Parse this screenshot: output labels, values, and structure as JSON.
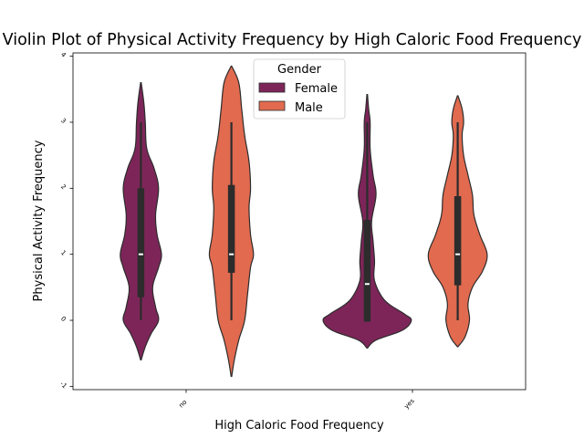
{
  "chart_data": {
    "type": "violin",
    "title": "Violin Plot of Physical Activity Frequency by High Caloric Food Frequency",
    "xlabel": "High Caloric Food Frequency",
    "ylabel": "Physical Activity Frequency",
    "categories": [
      "no",
      "yes"
    ],
    "yticks": [
      "-1",
      "0",
      "1",
      "2",
      "3",
      "4"
    ],
    "ylim": [
      -1.05,
      4.05
    ],
    "legend": {
      "title": "Gender",
      "placement": "top-center",
      "entries": [
        "Female",
        "Male"
      ]
    },
    "colors": {
      "Female": "#7d2559",
      "Male": "#e16a4f",
      "box": "#2c2c2c"
    },
    "series": [
      {
        "name": "Female",
        "violins": [
          {
            "category": "no",
            "median": 1.0,
            "q1": 0.35,
            "q3": 2.0,
            "whisker_low": 0.0,
            "whisker_high": 3.0,
            "profile": [
              [
                -0.6,
                0.2
              ],
              [
                -0.4,
                3
              ],
              [
                -0.2,
                7
              ],
              [
                0.0,
                12
              ],
              [
                0.2,
                10
              ],
              [
                0.5,
                8
              ],
              [
                0.8,
                12
              ],
              [
                1.0,
                14
              ],
              [
                1.3,
                11
              ],
              [
                1.6,
                10
              ],
              [
                2.0,
                12
              ],
              [
                2.3,
                9
              ],
              [
                2.6,
                4
              ],
              [
                3.0,
                3
              ],
              [
                3.3,
                2
              ],
              [
                3.6,
                0.2
              ]
            ]
          },
          {
            "category": "yes",
            "median": 0.55,
            "q1": -0.02,
            "q3": 1.52,
            "whisker_low": -0.02,
            "whisker_high": 3.0,
            "profile": [
              [
                -0.42,
                0.2
              ],
              [
                -0.3,
                6
              ],
              [
                -0.15,
                24
              ],
              [
                0.0,
                30
              ],
              [
                0.1,
                25
              ],
              [
                0.3,
                12
              ],
              [
                0.6,
                5
              ],
              [
                0.9,
                5
              ],
              [
                1.2,
                4
              ],
              [
                1.5,
                3
              ],
              [
                1.9,
                6
              ],
              [
                2.2,
                4
              ],
              [
                2.6,
                2
              ],
              [
                3.0,
                2
              ],
              [
                3.2,
                1
              ],
              [
                3.42,
                0.2
              ]
            ]
          }
        ]
      },
      {
        "name": "Male",
        "violins": [
          {
            "category": "no",
            "median": 1.0,
            "q1": 0.72,
            "q3": 2.05,
            "whisker_low": 0.0,
            "whisker_high": 3.0,
            "profile": [
              [
                -0.85,
                0.2
              ],
              [
                -0.6,
                2
              ],
              [
                -0.3,
                5
              ],
              [
                0.0,
                9
              ],
              [
                0.4,
                11
              ],
              [
                0.8,
                13
              ],
              [
                1.0,
                15
              ],
              [
                1.3,
                13
              ],
              [
                1.7,
                12
              ],
              [
                2.0,
                13
              ],
              [
                2.4,
                12
              ],
              [
                2.8,
                9
              ],
              [
                3.2,
                7
              ],
              [
                3.6,
                5
              ],
              [
                3.85,
                0.2
              ]
            ]
          },
          {
            "category": "yes",
            "median": 1.0,
            "q1": 0.53,
            "q3": 1.88,
            "whisker_low": 0.0,
            "whisker_high": 3.0,
            "profile": [
              [
                -0.4,
                0.2
              ],
              [
                -0.25,
                5
              ],
              [
                0.0,
                8
              ],
              [
                0.25,
                7
              ],
              [
                0.5,
                10
              ],
              [
                0.75,
                17
              ],
              [
                1.0,
                20
              ],
              [
                1.3,
                15
              ],
              [
                1.6,
                11
              ],
              [
                1.9,
                10
              ],
              [
                2.2,
                7
              ],
              [
                2.5,
                4
              ],
              [
                2.8,
                3
              ],
              [
                3.0,
                4
              ],
              [
                3.2,
                3
              ],
              [
                3.4,
                0.2
              ]
            ]
          }
        ]
      }
    ]
  }
}
